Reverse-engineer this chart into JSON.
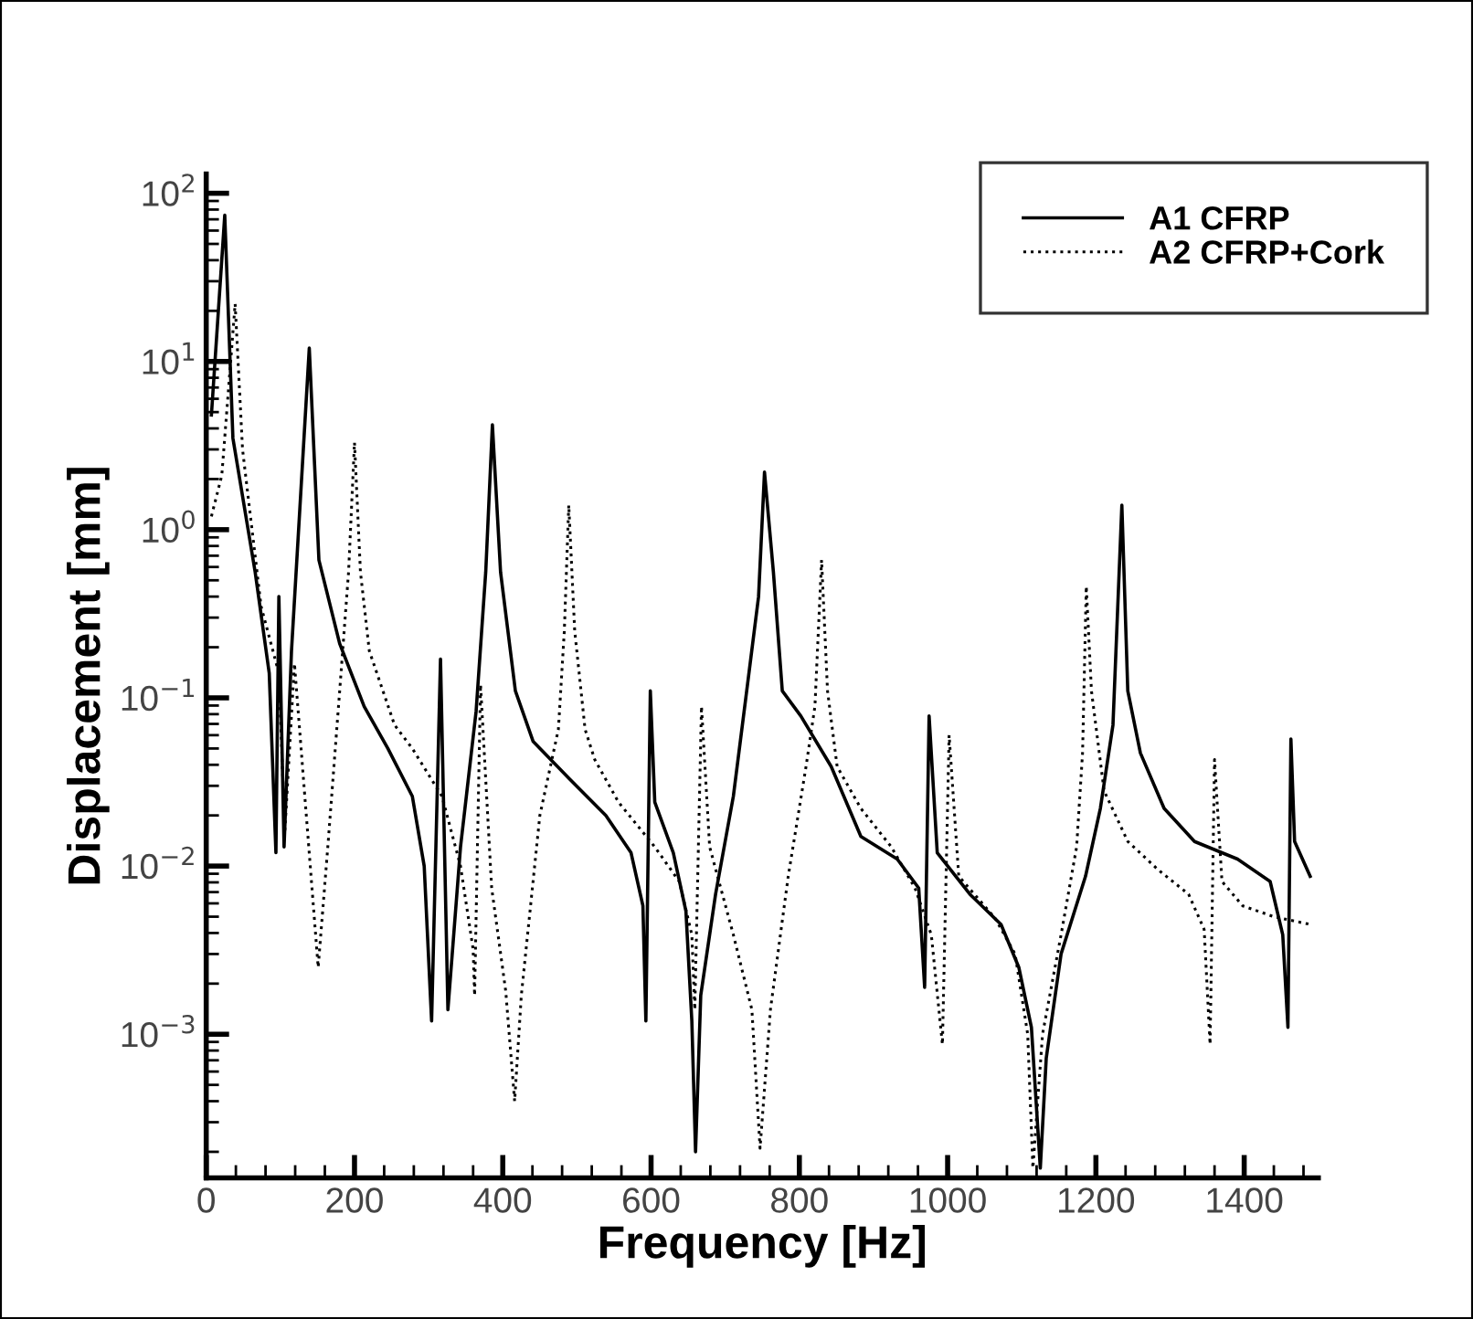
{
  "chart_data": {
    "type": "line",
    "xlabel": "Frequency [Hz]",
    "ylabel": "Displacement [mm]",
    "log": "y",
    "xlim": [
      0,
      1500
    ],
    "ylim": [
      0.00014,
      130
    ],
    "xticks": [
      0,
      200,
      400,
      600,
      800,
      1000,
      1200,
      1400
    ],
    "yticks": [
      {
        "value": 0.001,
        "label": "10$^{−3}$"
      },
      {
        "value": 0.01,
        "label": "10$^{−2}$"
      },
      {
        "value": 0.1,
        "label": "10$^{−1}$"
      },
      {
        "value": 1,
        "label": "10$^{0}$"
      },
      {
        "value": 10,
        "label": "10$^{1}$"
      },
      {
        "value": 100,
        "label": "10$^{2}$"
      }
    ],
    "grid": false,
    "legend": "top right",
    "marker": "none",
    "series": [
      {
        "name": "A1 CFRP",
        "color": "#000000",
        "line_style": "solid",
        "x": [
          7,
          25,
          36,
          66,
          85,
          94,
          98,
          105,
          115,
          139,
          152,
          180,
          213,
          245,
          278,
          294,
          304,
          316,
          326,
          343,
          364,
          377,
          386,
          397,
          417,
          441,
          490,
          539,
          573,
          589,
          593,
          599,
          605,
          630,
          647,
          655,
          660,
          667,
          687,
          711,
          732,
          745,
          753,
          765,
          777,
          802,
          843,
          883,
          932,
          961,
          969,
          975,
          986,
          1030,
          1072,
          1096,
          1113,
          1125,
          1133,
          1153,
          1186,
          1206,
          1223,
          1235,
          1243,
          1260,
          1292,
          1333,
          1391,
          1435,
          1452,
          1459,
          1463,
          1468,
          1489
        ],
        "values": [
          4.8,
          74,
          3.5,
          0.56,
          0.14,
          0.012,
          0.4,
          0.013,
          0.19,
          12,
          0.66,
          0.21,
          0.089,
          0.05,
          0.026,
          0.01,
          0.0012,
          0.17,
          0.0014,
          0.013,
          0.083,
          0.56,
          4.2,
          0.56,
          0.11,
          0.055,
          0.033,
          0.02,
          0.012,
          0.0058,
          0.0012,
          0.11,
          0.024,
          0.012,
          0.0054,
          0.0012,
          0.0002,
          0.0017,
          0.0068,
          0.026,
          0.14,
          0.4,
          2.2,
          0.56,
          0.11,
          0.078,
          0.039,
          0.015,
          0.011,
          0.0074,
          0.0019,
          0.078,
          0.012,
          0.0068,
          0.0045,
          0.0025,
          0.0011,
          0.00016,
          0.00072,
          0.003,
          0.0087,
          0.022,
          0.069,
          1.4,
          0.11,
          0.047,
          0.022,
          0.014,
          0.011,
          0.0081,
          0.0039,
          0.0011,
          0.057,
          0.014,
          0.0087
        ]
      },
      {
        "name": "A2 CFRP+Cork",
        "color": "#000000",
        "line_style": "dotted",
        "x": [
          7,
          21,
          39,
          49,
          74,
          98,
          106,
          119,
          151,
          164,
          180,
          192,
          200,
          208,
          220,
          254,
          278,
          318,
          343,
          360,
          362,
          370,
          385,
          404,
          416,
          425,
          450,
          475,
          483,
          489,
          497,
          511,
          524,
          556,
          605,
          638,
          655,
          659,
          668,
          679,
          711,
          736,
          747,
          761,
          785,
          809,
          821,
          830,
          838,
          851,
          883,
          924,
          956,
          978,
          993,
          1002,
          1015,
          1064,
          1091,
          1108,
          1115,
          1128,
          1153,
          1174,
          1182,
          1187,
          1194,
          1211,
          1243,
          1284,
          1325,
          1346,
          1354,
          1360,
          1370,
          1398,
          1440,
          1489
        ],
        "values": [
          1.2,
          2.1,
          22,
          3.0,
          0.35,
          0.14,
          0.016,
          0.16,
          0.0025,
          0.013,
          0.11,
          0.56,
          3.3,
          0.56,
          0.19,
          0.069,
          0.05,
          0.026,
          0.01,
          0.0032,
          0.0017,
          0.12,
          0.0074,
          0.0018,
          0.0004,
          0.0017,
          0.02,
          0.065,
          0.25,
          1.4,
          0.25,
          0.065,
          0.043,
          0.024,
          0.013,
          0.0081,
          0.0039,
          0.0014,
          0.089,
          0.013,
          0.0039,
          0.0014,
          0.00021,
          0.0014,
          0.0087,
          0.039,
          0.089,
          0.66,
          0.11,
          0.039,
          0.022,
          0.013,
          0.0074,
          0.0039,
          0.00087,
          0.06,
          0.0087,
          0.0049,
          0.003,
          0.001,
          0.00016,
          0.001,
          0.0039,
          0.013,
          0.047,
          0.46,
          0.11,
          0.028,
          0.014,
          0.0095,
          0.0068,
          0.0042,
          0.00087,
          0.043,
          0.0081,
          0.0058,
          0.005,
          0.0045
        ]
      }
    ]
  }
}
